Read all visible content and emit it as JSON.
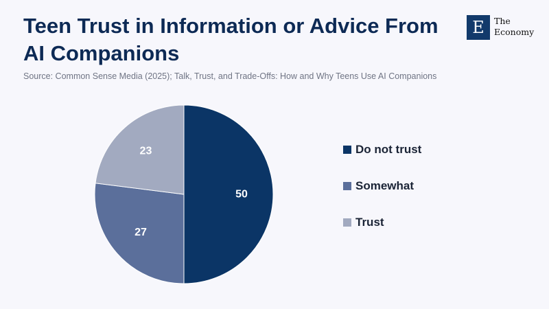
{
  "header": {
    "title": "Teen Trust in Information or Advice From AI Companions",
    "source": "Source: Common Sense Media (2025); Talk, Trust, and Trade-Offs: How and Why Teens Use AI Companions"
  },
  "logo": {
    "mark": "E",
    "line1": "The",
    "line2": "Economy",
    "color": "#123a6b"
  },
  "chart_data": {
    "type": "pie",
    "title": "Teen Trust in Information or Advice From AI Companions",
    "categories": [
      "Do not trust",
      "Somewhat",
      "Trust"
    ],
    "values": [
      50,
      27,
      23
    ],
    "colors": [
      "#0b3566",
      "#5b6f9b",
      "#a2aac0"
    ],
    "data_labels": [
      "50",
      "27",
      "23"
    ],
    "start_angle": "12 o'clock",
    "direction": "clockwise",
    "legend_placement": "right"
  }
}
